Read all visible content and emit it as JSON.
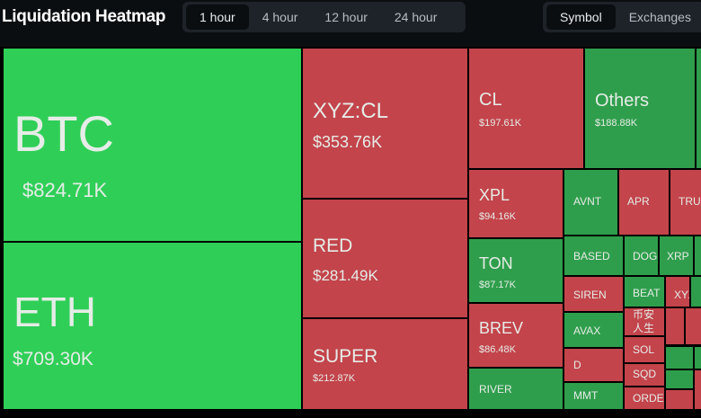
{
  "header": {
    "title": "Liquidation Heatmap",
    "time_tabs": [
      "1 hour",
      "4 hour",
      "12 hour",
      "24 hour"
    ],
    "active_time_tab": 0,
    "view_tabs": [
      "Symbol",
      "Exchanges"
    ],
    "active_view_tab": 0
  },
  "tiles": [
    {
      "label": "BTC",
      "value": "$824.71K",
      "color": "#2fcf57"
    },
    {
      "label": "ETH",
      "value": "$709.30K",
      "color": "#2fcf57"
    },
    {
      "label": "XYZ:CL",
      "value": "$353.76K",
      "color": "#c3444b"
    },
    {
      "label": "RED",
      "value": "$281.49K",
      "color": "#c3444b"
    },
    {
      "label": "SUPER",
      "value": "$212.87K",
      "color": "#c3444b"
    },
    {
      "label": "CL",
      "value": "$197.61K",
      "color": "#c3444b"
    },
    {
      "label": "Others",
      "value": "$188.88K",
      "color": "#2f9e4c"
    },
    {
      "label": "XPL",
      "value": "$94.16K",
      "color": "#c3444b"
    },
    {
      "label": "TON",
      "value": "$87.17K",
      "color": "#2f9e4c"
    },
    {
      "label": "BREV",
      "value": "$86.48K",
      "color": "#c3444b"
    },
    {
      "label": "RIVER",
      "color": "#2f9e4c"
    },
    {
      "label": "AVNT",
      "color": "#2f9e4c"
    },
    {
      "label": "APR",
      "color": "#c3444b"
    },
    {
      "label": "TRU",
      "color": "#c3444b"
    },
    {
      "label": "BASED",
      "color": "#2f9e4c"
    },
    {
      "label": "DOGE",
      "color": "#2f9e4c"
    },
    {
      "label": "XRP",
      "color": "#2f9e4c"
    },
    {
      "label": "SIREN",
      "color": "#c3444b"
    },
    {
      "label": "BEAT",
      "color": "#2f9e4c"
    },
    {
      "label": "XYZ",
      "color": "#c3444b"
    },
    {
      "label": "AVAX",
      "color": "#2f9e4c"
    },
    {
      "label": "币安人生",
      "color": "#c3444b"
    },
    {
      "label": "SOL",
      "color": "#c3444b"
    },
    {
      "label": "D",
      "color": "#c3444b"
    },
    {
      "label": "SQD",
      "color": "#c3444b"
    },
    {
      "label": "MMT",
      "color": "#2f9e4c"
    },
    {
      "label": "ORDER",
      "color": "#c3444b"
    }
  ]
}
